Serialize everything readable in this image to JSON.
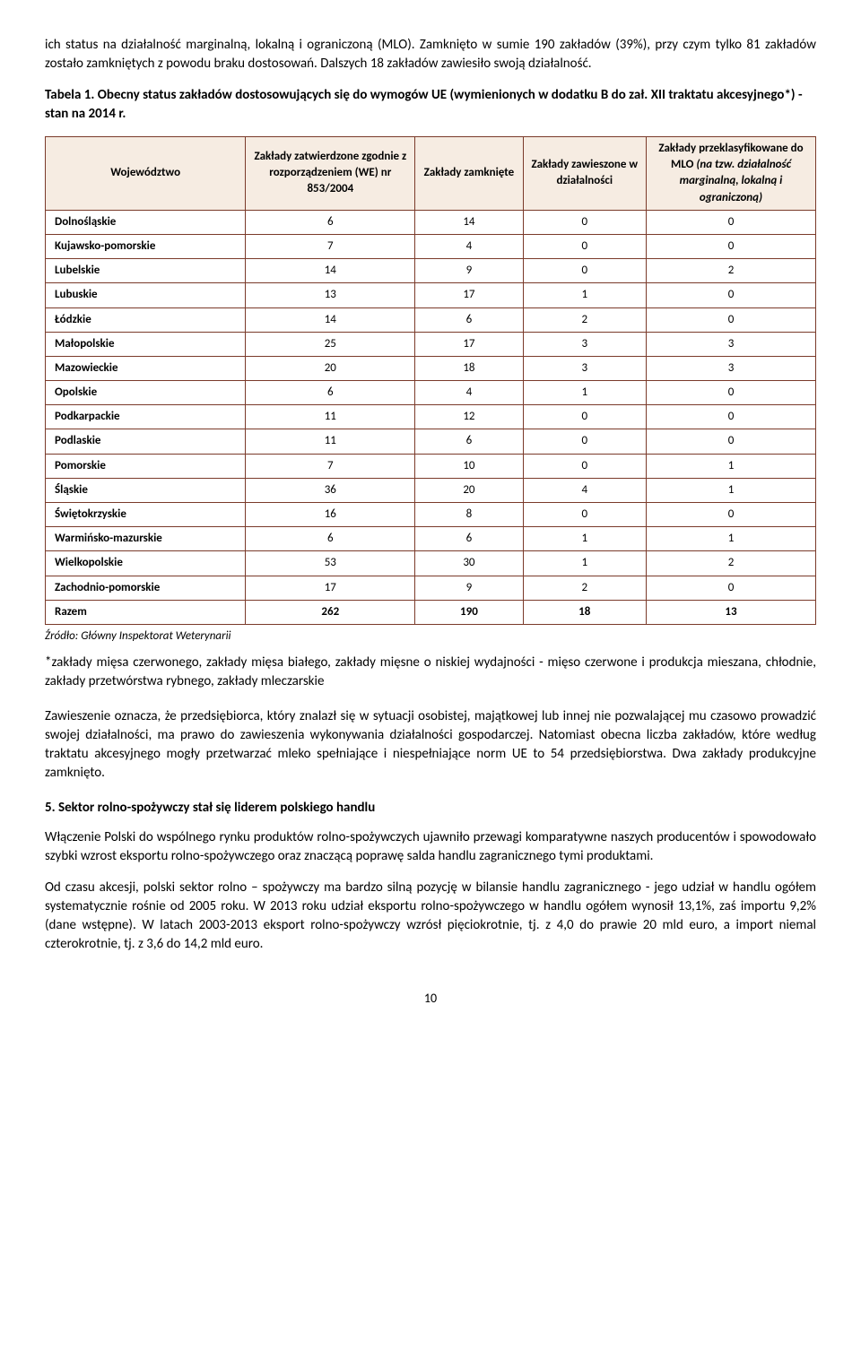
{
  "intro": "ich status na działalność marginalną, lokalną i ograniczoną (MLO). Zamknięto w sumie 190 zakładów (39%), przy czym tylko 81 zakładów zostało zamkniętych z powodu braku dostosowań. Dalszych 18 zakładów zawiesiło swoją działalność.",
  "table_caption": "Tabela 1. Obecny status zakładów dostosowujących się do wymogów UE (wymienionych w dodatku B do zał. XII traktatu akcesyjnego*) - stan na 2014 r.",
  "columns": {
    "c0": "Województwo",
    "c1": "Zakłady zatwierdzone zgodnie z rozporządzeniem (WE) nr 853/2004",
    "c2": "Zakłady zamknięte",
    "c3": "Zakłady zawieszone w działalności",
    "c4_l1": "Zakłady przeklasyfikowane do MLO ",
    "c4_l2": "(na tzw. działalność marginalną, lokalną i ograniczoną)"
  },
  "rows": [
    {
      "name": "Dolnośląskie",
      "a": "6",
      "b": "14",
      "c": "0",
      "d": "0"
    },
    {
      "name": "Kujawsko-pomorskie",
      "a": "7",
      "b": "4",
      "c": "0",
      "d": "0"
    },
    {
      "name": "Lubelskie",
      "a": "14",
      "b": "9",
      "c": "0",
      "d": "2"
    },
    {
      "name": "Lubuskie",
      "a": "13",
      "b": "17",
      "c": "1",
      "d": "0"
    },
    {
      "name": "Łódzkie",
      "a": "14",
      "b": "6",
      "c": "2",
      "d": "0"
    },
    {
      "name": "Małopolskie",
      "a": "25",
      "b": "17",
      "c": "3",
      "d": "3"
    },
    {
      "name": "Mazowieckie",
      "a": "20",
      "b": "18",
      "c": "3",
      "d": "3"
    },
    {
      "name": "Opolskie",
      "a": "6",
      "b": "4",
      "c": "1",
      "d": "0"
    },
    {
      "name": "Podkarpackie",
      "a": "11",
      "b": "12",
      "c": "0",
      "d": "0"
    },
    {
      "name": "Podlaskie",
      "a": "11",
      "b": "6",
      "c": "0",
      "d": "0"
    },
    {
      "name": "Pomorskie",
      "a": "7",
      "b": "10",
      "c": "0",
      "d": "1"
    },
    {
      "name": "Śląskie",
      "a": "36",
      "b": "20",
      "c": "4",
      "d": "1"
    },
    {
      "name": "Świętokrzyskie",
      "a": "16",
      "b": "8",
      "c": "0",
      "d": "0"
    },
    {
      "name": "Warmińsko-mazurskie",
      "a": "6",
      "b": "6",
      "c": "1",
      "d": "1"
    },
    {
      "name": "Wielkopolskie",
      "a": "53",
      "b": "30",
      "c": "1",
      "d": "2"
    },
    {
      "name": "Zachodnio-pomorskie",
      "a": "17",
      "b": "9",
      "c": "2",
      "d": "0"
    }
  ],
  "total": {
    "name": "Razem",
    "a": "262",
    "b": "190",
    "c": "18",
    "d": "13"
  },
  "source": "Źródło: Główny Inspektorat Weterynarii",
  "footnote": "*zakłady mięsa czerwonego, zakłady mięsa białego, zakłady mięsne o niskiej wydajności - mięso czerwone i produkcja mieszana, chłodnie, zakłady przetwórstwa rybnego, zakłady mleczarskie",
  "para2": "Zawieszenie oznacza, że  przedsiębiorca, który znalazł się w sytuacji osobistej, majątkowej lub innej nie pozwalającej mu czasowo prowadzić swojej działalności, ma prawo do zawieszenia wykonywania działalności gospodarczej. Natomiast obecna liczba zakładów, które według traktatu akcesyjnego mogły przetwarzać mleko spełniające i niespełniające norm UE to 54 przedsiębiorstwa. Dwa zakłady produkcyjne zamknięto.",
  "section_title": "5.  Sektor rolno-spożywczy stał się liderem polskiego handlu",
  "para3": "Włączenie Polski do wspólnego rynku produktów rolno-spożywczych ujawniło przewagi komparatywne naszych producentów i spowodowało szybki wzrost eksportu rolno-spożywczego oraz znaczącą poprawę salda handlu zagranicznego tymi produktami.",
  "para4": "Od czasu akcesji, polski sektor rolno – spożywczy ma bardzo silną pozycję w bilansie handlu zagranicznego - jego udział w handlu ogółem systematycznie rośnie od 2005 roku. W 2013 roku udział eksportu rolno-spożywczego w handlu ogółem wynosił 13,1%, zaś importu 9,2% (dane wstępne). W latach 2003-2013 eksport rolno-spożywczy wzrósł pięciokrotnie, tj. z 4,0 do prawie 20 mld euro, a import niemal czterokrotnie, tj. z 3,6 do 14,2 mld euro.",
  "page": "10",
  "style": {
    "header_bg": "#f6ece2",
    "border_color": "#7a3a2a",
    "col_widths": [
      "26%",
      "22%",
      "14%",
      "16%",
      "22%"
    ]
  }
}
